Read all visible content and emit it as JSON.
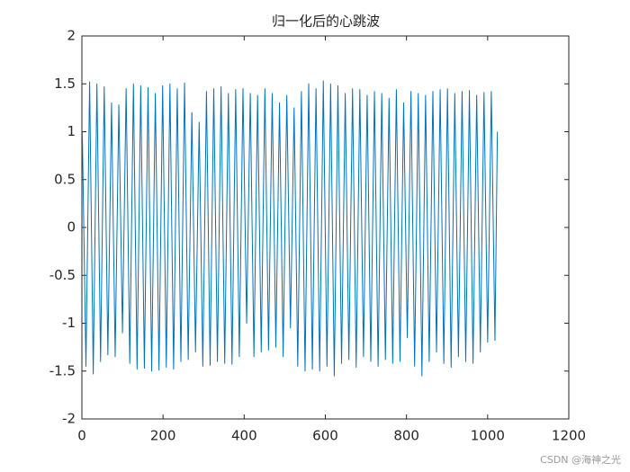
{
  "chart_data": {
    "type": "line",
    "title": "归一化后的心跳波",
    "x": [
      1,
      10,
      19,
      28,
      37,
      46,
      55,
      64,
      73,
      82,
      91,
      100,
      109,
      118,
      127,
      136,
      145,
      154,
      163,
      172,
      181,
      190,
      199,
      208,
      217,
      226,
      235,
      244,
      253,
      262,
      271,
      280,
      289,
      298,
      307,
      316,
      325,
      334,
      343,
      352,
      361,
      370,
      379,
      388,
      397,
      406,
      415,
      424,
      433,
      442,
      451,
      460,
      469,
      478,
      487,
      496,
      505,
      514,
      523,
      532,
      541,
      550,
      559,
      568,
      577,
      586,
      595,
      604,
      613,
      622,
      631,
      640,
      649,
      658,
      667,
      676,
      685,
      694,
      703,
      712,
      721,
      730,
      739,
      748,
      757,
      766,
      775,
      784,
      793,
      802,
      811,
      820,
      829,
      838,
      847,
      856,
      865,
      874,
      883,
      892,
      901,
      910,
      919,
      928,
      937,
      946,
      955,
      964,
      973,
      982,
      991,
      1000,
      1009,
      1018,
      1024
    ],
    "values": [
      1.0,
      -1.45,
      1.52,
      -1.53,
      1.5,
      -1.4,
      1.47,
      -1.33,
      1.3,
      -1.35,
      1.28,
      -1.1,
      1.45,
      -1.42,
      1.5,
      -1.48,
      1.48,
      -1.47,
      1.46,
      -1.5,
      1.4,
      -1.49,
      1.48,
      -1.46,
      1.5,
      -1.48,
      1.45,
      -1.4,
      1.51,
      -1.38,
      1.2,
      -1.3,
      1.1,
      -1.45,
      1.42,
      -1.44,
      1.45,
      -1.4,
      1.47,
      -1.42,
      1.4,
      -1.43,
      1.44,
      -1.35,
      1.45,
      -1.0,
      1.4,
      -1.35,
      1.38,
      -1.3,
      1.45,
      -1.28,
      1.4,
      -1.25,
      1.3,
      -1.35,
      1.38,
      -1.05,
      1.25,
      -1.45,
      1.42,
      -1.5,
      1.5,
      -1.48,
      1.45,
      -1.5,
      1.53,
      -1.45,
      1.5,
      -1.55,
      1.48,
      -1.42,
      1.4,
      -1.38,
      1.45,
      -1.46,
      1.44,
      -1.35,
      1.38,
      -1.4,
      1.42,
      -1.45,
      1.4,
      -1.38,
      1.35,
      -1.42,
      1.44,
      -1.4,
      1.3,
      -1.15,
      1.42,
      -1.45,
      1.4,
      -1.55,
      1.38,
      -1.4,
      1.42,
      -1.3,
      1.44,
      -1.42,
      1.45,
      -1.46,
      1.4,
      -1.35,
      1.42,
      -1.4,
      1.43,
      -1.42,
      1.38,
      -1.3,
      1.41,
      -1.2,
      1.42,
      -1.18,
      1.0
    ],
    "color": "#0072bd",
    "xlim": [
      0,
      1200
    ],
    "xticks": [
      0,
      200,
      400,
      600,
      800,
      1000,
      1200
    ],
    "ylim": [
      -2,
      2
    ],
    "yticks": [
      -2,
      -1.5,
      -1,
      -0.5,
      0,
      0.5,
      1,
      1.5,
      2
    ],
    "grid": false
  },
  "watermark": "CSDN @海神之光"
}
